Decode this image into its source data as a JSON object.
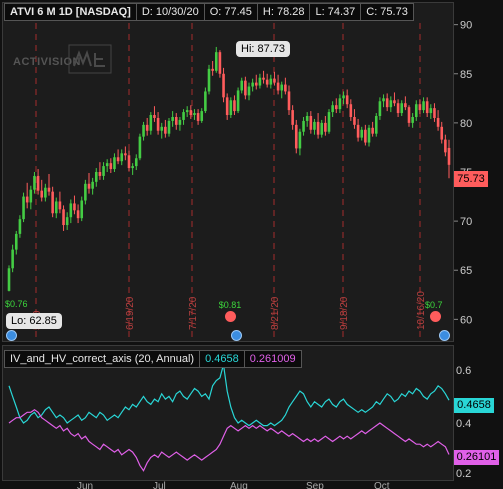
{
  "header": {
    "symbol": "ATVI 6 M 1D [NASDAQ]",
    "date": "D: 10/30/20",
    "open": "O: 77.45",
    "high": "H: 78.28",
    "low": "L: 74.37",
    "close": "C: 75.73"
  },
  "watermark": "ACTIVISION",
  "price_axis": {
    "min": 58,
    "max": 92,
    "ticks": [
      60,
      65,
      70,
      75,
      80,
      85,
      90
    ],
    "last_price_label": "75.73"
  },
  "price_events": {
    "hi_label": "Hi: 87.73",
    "lo_label": "Lo: 62.85",
    "dividend_left": "$0.76",
    "dividend_labels": [
      "$0.81",
      "$0.7"
    ],
    "earnings_dates": [
      "5/20",
      "6/19/20",
      "7/17/20",
      "8/21/20",
      "9/18/20",
      "10/16/20"
    ]
  },
  "indicator": {
    "name": "IV_and_HV_correct_axis (20, Annual)",
    "iv_value": "0.4658",
    "hv_value": "0.26101",
    "hv_header_value": "0.261009",
    "axis_ticks": [
      "0.6",
      "0.4",
      "0.2"
    ]
  },
  "time_axis": {
    "labels": [
      "Jun",
      "Jul",
      "Aug",
      "Sep",
      "Oct"
    ]
  },
  "colors": {
    "up": "#44cc44",
    "down": "#ff5c5c",
    "iv": "#29d6d6",
    "hv": "#e060e8",
    "panel": "#1c1c1c"
  },
  "chart_data": [
    {
      "type": "candlestick",
      "title": "ATVI 6 M 1D [NASDAQ]",
      "ylim": [
        58,
        92
      ],
      "x_labels": [
        "Jun",
        "Jul",
        "Aug",
        "Sep",
        "Oct"
      ],
      "ohlc": [
        [
          62.9,
          65.5,
          62.85,
          65.2
        ],
        [
          65.2,
          67.6,
          64.8,
          67.1
        ],
        [
          67.1,
          69.0,
          66.6,
          68.7
        ],
        [
          68.7,
          70.6,
          68.3,
          70.2
        ],
        [
          70.2,
          72.9,
          69.9,
          72.5
        ],
        [
          72.5,
          73.9,
          71.3,
          71.9
        ],
        [
          71.9,
          73.6,
          71.2,
          73.2
        ],
        [
          73.2,
          75.0,
          72.8,
          74.6
        ],
        [
          74.6,
          75.3,
          72.7,
          73.1
        ],
        [
          73.1,
          74.2,
          72.0,
          72.4
        ],
        [
          72.4,
          73.8,
          72.0,
          73.4
        ],
        [
          73.4,
          74.8,
          72.6,
          73.0
        ],
        [
          73.0,
          73.5,
          70.4,
          70.8
        ],
        [
          70.8,
          72.4,
          70.3,
          72.0
        ],
        [
          72.0,
          73.0,
          70.8,
          71.2
        ],
        [
          71.2,
          71.6,
          69.0,
          69.6
        ],
        [
          69.6,
          70.9,
          69.1,
          70.4
        ],
        [
          70.4,
          72.2,
          69.8,
          71.8
        ],
        [
          71.8,
          72.6,
          70.7,
          71.1
        ],
        [
          71.1,
          71.7,
          69.8,
          70.3
        ],
        [
          70.3,
          72.5,
          70.0,
          72.1
        ],
        [
          72.1,
          74.2,
          71.7,
          73.8
        ],
        [
          73.8,
          74.9,
          72.8,
          73.3
        ],
        [
          73.3,
          74.4,
          72.7,
          74.0
        ],
        [
          74.0,
          75.4,
          73.5,
          75.0
        ],
        [
          75.0,
          76.0,
          74.2,
          74.6
        ],
        [
          74.6,
          76.0,
          74.2,
          75.6
        ],
        [
          75.6,
          76.3,
          75.0,
          75.9
        ],
        [
          75.9,
          76.4,
          74.9,
          75.3
        ],
        [
          75.3,
          76.9,
          75.0,
          76.5
        ],
        [
          76.5,
          77.3,
          75.8,
          76.1
        ],
        [
          76.1,
          77.3,
          75.7,
          76.9
        ],
        [
          76.9,
          77.6,
          76.2,
          76.7
        ],
        [
          76.7,
          77.2,
          75.1,
          75.4
        ],
        [
          75.4,
          75.9,
          74.7,
          75.6
        ],
        [
          75.6,
          76.8,
          75.2,
          76.4
        ],
        [
          76.4,
          78.9,
          76.2,
          78.6
        ],
        [
          78.6,
          80.1,
          78.2,
          79.8
        ],
        [
          79.8,
          80.5,
          78.7,
          79.2
        ],
        [
          79.2,
          81.1,
          78.8,
          80.8
        ],
        [
          80.8,
          81.7,
          80.1,
          80.5
        ],
        [
          80.5,
          81.1,
          78.8,
          79.2
        ],
        [
          79.2,
          80.0,
          78.4,
          79.6
        ],
        [
          79.6,
          80.3,
          78.5,
          78.9
        ],
        [
          78.9,
          80.5,
          78.6,
          80.2
        ],
        [
          80.2,
          81.2,
          79.6,
          80.6
        ],
        [
          80.6,
          81.0,
          79.3,
          79.8
        ],
        [
          79.8,
          80.6,
          79.2,
          80.3
        ],
        [
          80.3,
          81.4,
          79.8,
          81.1
        ],
        [
          81.1,
          81.7,
          80.6,
          81.3
        ],
        [
          81.3,
          81.8,
          80.4,
          80.8
        ],
        [
          80.8,
          81.4,
          80.3,
          81.0
        ],
        [
          81.0,
          81.4,
          79.8,
          80.2
        ],
        [
          80.2,
          81.5,
          80.0,
          81.2
        ],
        [
          81.2,
          83.6,
          81.0,
          83.2
        ],
        [
          83.2,
          85.9,
          82.9,
          85.5
        ],
        [
          85.5,
          86.3,
          84.8,
          85.3
        ],
        [
          85.3,
          87.73,
          85.1,
          87.2
        ],
        [
          87.2,
          87.4,
          84.6,
          85.0
        ],
        [
          85.0,
          85.6,
          82.1,
          82.6
        ],
        [
          82.6,
          83.0,
          80.3,
          80.8
        ],
        [
          80.8,
          82.6,
          80.5,
          82.3
        ],
        [
          82.3,
          82.8,
          80.8,
          81.2
        ],
        [
          81.2,
          83.6,
          81.0,
          83.3
        ],
        [
          83.3,
          84.6,
          83.0,
          84.3
        ],
        [
          84.3,
          84.7,
          82.4,
          82.8
        ],
        [
          82.8,
          84.1,
          82.3,
          83.7
        ],
        [
          83.7,
          84.5,
          83.2,
          84.1
        ],
        [
          84.1,
          84.9,
          83.4,
          83.8
        ],
        [
          83.8,
          85.0,
          83.5,
          84.6
        ],
        [
          84.6,
          85.3,
          84.0,
          84.4
        ],
        [
          84.4,
          85.0,
          83.6,
          83.9
        ],
        [
          83.9,
          84.9,
          83.5,
          84.5
        ],
        [
          84.5,
          85.2,
          83.8,
          84.1
        ],
        [
          84.1,
          84.9,
          82.9,
          83.3
        ],
        [
          83.3,
          84.2,
          82.5,
          83.9
        ],
        [
          83.9,
          84.6,
          82.9,
          83.2
        ],
        [
          83.2,
          83.8,
          80.8,
          81.3
        ],
        [
          81.3,
          81.8,
          79.3,
          79.8
        ],
        [
          79.8,
          80.3,
          76.9,
          77.4
        ],
        [
          77.4,
          79.4,
          76.7,
          79.1
        ],
        [
          79.1,
          80.6,
          78.7,
          80.2
        ],
        [
          80.2,
          81.1,
          79.6,
          80.7
        ],
        [
          80.7,
          81.2,
          78.9,
          79.3
        ],
        [
          79.3,
          80.4,
          78.8,
          80.1
        ],
        [
          80.1,
          81.0,
          78.4,
          78.8
        ],
        [
          78.8,
          80.3,
          78.5,
          80.0
        ],
        [
          80.0,
          80.7,
          78.7,
          79.1
        ],
        [
          79.1,
          81.4,
          78.9,
          81.1
        ],
        [
          81.1,
          82.2,
          80.6,
          81.8
        ],
        [
          81.8,
          82.5,
          81.0,
          81.4
        ],
        [
          81.4,
          82.9,
          81.0,
          82.5
        ],
        [
          82.5,
          83.2,
          81.9,
          82.8
        ],
        [
          82.8,
          83.4,
          81.5,
          81.9
        ],
        [
          81.9,
          82.4,
          80.2,
          80.6
        ],
        [
          80.6,
          81.4,
          79.4,
          79.8
        ],
        [
          79.8,
          80.4,
          78.1,
          78.5
        ],
        [
          78.5,
          79.6,
          78.2,
          79.3
        ],
        [
          79.3,
          79.8,
          77.7,
          78.0
        ],
        [
          78.0,
          79.8,
          77.6,
          79.5
        ],
        [
          79.5,
          80.1,
          78.6,
          78.9
        ],
        [
          78.9,
          81.0,
          78.6,
          80.7
        ],
        [
          80.7,
          82.6,
          80.3,
          82.2
        ],
        [
          82.2,
          82.9,
          81.6,
          82.5
        ],
        [
          82.5,
          83.0,
          81.2,
          81.6
        ],
        [
          81.6,
          82.7,
          81.1,
          82.3
        ],
        [
          82.3,
          83.1,
          81.7,
          82.0
        ],
        [
          82.0,
          82.4,
          80.6,
          81.0
        ],
        [
          81.0,
          82.3,
          80.7,
          82.0
        ],
        [
          82.0,
          82.7,
          81.3,
          81.6
        ],
        [
          81.6,
          81.8,
          79.6,
          80.0
        ],
        [
          80.0,
          81.0,
          79.5,
          80.6
        ],
        [
          80.6,
          82.3,
          80.2,
          81.9
        ],
        [
          81.9,
          82.4,
          80.9,
          81.3
        ],
        [
          81.3,
          82.6,
          81.0,
          82.2
        ],
        [
          82.2,
          82.6,
          80.6,
          81.0
        ],
        [
          81.0,
          81.9,
          80.4,
          81.5
        ],
        [
          81.5,
          82.0,
          80.1,
          80.5
        ],
        [
          80.5,
          81.3,
          79.2,
          79.6
        ],
        [
          79.6,
          80.1,
          77.9,
          78.3
        ],
        [
          78.3,
          78.8,
          76.6,
          77.0
        ],
        [
          77.45,
          78.28,
          74.37,
          75.73
        ]
      ]
    },
    {
      "type": "line",
      "title": "IV_and_HV_correct_axis (20, Annual)",
      "ylim": [
        0.18,
        0.64
      ],
      "series": [
        {
          "name": "IV",
          "values": [
            0.52,
            0.48,
            0.44,
            0.4,
            0.38,
            0.39,
            0.41,
            0.42,
            0.4,
            0.41,
            0.43,
            0.44,
            0.42,
            0.4,
            0.41,
            0.4,
            0.38,
            0.39,
            0.4,
            0.41,
            0.39,
            0.4,
            0.42,
            0.41,
            0.4,
            0.42,
            0.41,
            0.39,
            0.4,
            0.41,
            0.4,
            0.42,
            0.44,
            0.43,
            0.45,
            0.44,
            0.46,
            0.48,
            0.46,
            0.45,
            0.47,
            0.46,
            0.49,
            0.47,
            0.48,
            0.46,
            0.49,
            0.5,
            0.48,
            0.47,
            0.49,
            0.51,
            0.5,
            0.48,
            0.49,
            0.47,
            0.52,
            0.54,
            0.55,
            0.6,
            0.5,
            0.44,
            0.4,
            0.38,
            0.39,
            0.38,
            0.37,
            0.38,
            0.39,
            0.38,
            0.37,
            0.37,
            0.38,
            0.37,
            0.38,
            0.39,
            0.41,
            0.44,
            0.46,
            0.48,
            0.5,
            0.49,
            0.46,
            0.44,
            0.46,
            0.45,
            0.44,
            0.46,
            0.47,
            0.45,
            0.44,
            0.46,
            0.47,
            0.45,
            0.44,
            0.43,
            0.42,
            0.43,
            0.42,
            0.43,
            0.44,
            0.46,
            0.45,
            0.47,
            0.49,
            0.48,
            0.46,
            0.47,
            0.49,
            0.48,
            0.5,
            0.49,
            0.51,
            0.5,
            0.48,
            0.47,
            0.49,
            0.5,
            0.52,
            0.51,
            0.49,
            0.4658
          ]
        },
        {
          "name": "HV",
          "values": [
            0.38,
            0.39,
            0.4,
            0.4,
            0.41,
            0.42,
            0.42,
            0.43,
            0.42,
            0.4,
            0.39,
            0.38,
            0.37,
            0.36,
            0.37,
            0.35,
            0.36,
            0.34,
            0.33,
            0.34,
            0.32,
            0.33,
            0.31,
            0.3,
            0.29,
            0.28,
            0.3,
            0.29,
            0.28,
            0.27,
            0.28,
            0.26,
            0.27,
            0.28,
            0.27,
            0.25,
            0.22,
            0.2,
            0.23,
            0.25,
            0.26,
            0.25,
            0.27,
            0.26,
            0.25,
            0.26,
            0.27,
            0.26,
            0.25,
            0.24,
            0.25,
            0.26,
            0.25,
            0.24,
            0.25,
            0.26,
            0.27,
            0.28,
            0.3,
            0.33,
            0.36,
            0.37,
            0.36,
            0.35,
            0.36,
            0.37,
            0.36,
            0.37,
            0.36,
            0.37,
            0.36,
            0.35,
            0.36,
            0.35,
            0.34,
            0.35,
            0.34,
            0.33,
            0.34,
            0.33,
            0.32,
            0.31,
            0.32,
            0.31,
            0.32,
            0.31,
            0.32,
            0.33,
            0.32,
            0.31,
            0.32,
            0.33,
            0.32,
            0.33,
            0.32,
            0.33,
            0.34,
            0.35,
            0.34,
            0.35,
            0.36,
            0.37,
            0.38,
            0.37,
            0.36,
            0.35,
            0.34,
            0.33,
            0.32,
            0.31,
            0.32,
            0.31,
            0.3,
            0.3,
            0.29,
            0.3,
            0.29,
            0.3,
            0.31,
            0.3,
            0.29,
            0.26101
          ]
        }
      ]
    }
  ]
}
